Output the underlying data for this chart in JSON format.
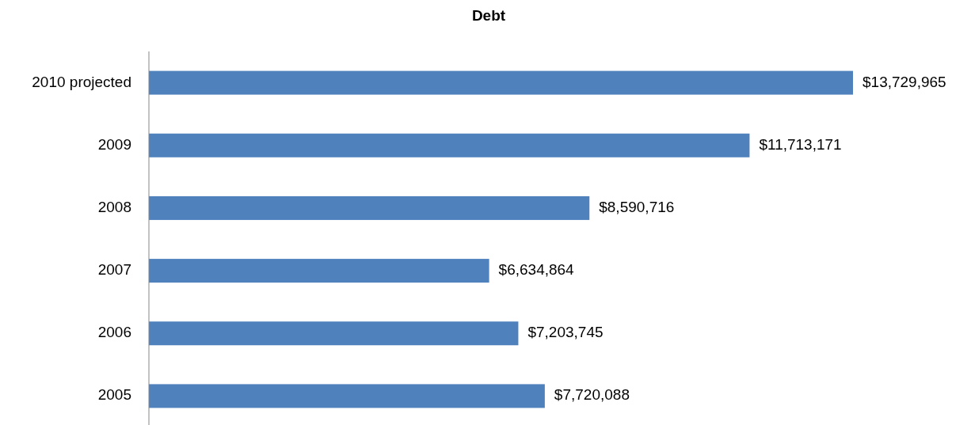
{
  "chart_data": {
    "type": "bar",
    "title": "Debt",
    "orientation": "horizontal",
    "categories": [
      "2010 projected",
      "2009",
      "2008",
      "2007",
      "2006",
      "2005"
    ],
    "values": [
      13729965,
      11713171,
      8590716,
      6634864,
      7203745,
      7720088
    ],
    "value_labels": [
      "$13,729,965",
      "$11,713,171",
      "$8,590,716",
      "$6,634,864",
      "$7,203,745",
      "$7,720,088"
    ],
    "color": "#4f81bd"
  }
}
